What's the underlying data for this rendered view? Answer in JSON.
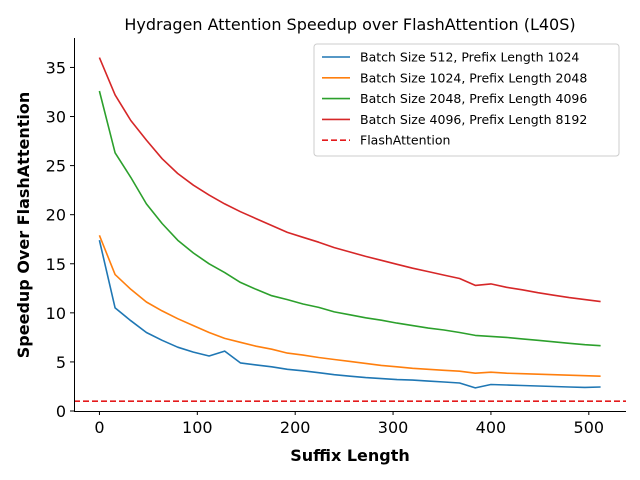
{
  "chart_data": {
    "type": "line",
    "title": "Hydragen Attention Speedup over FlashAttention (L40S)",
    "xlabel": "Suffix Length",
    "ylabel": "Speedup Over FlashAttention",
    "xlim": [
      -26,
      538
    ],
    "ylim": [
      0,
      38
    ],
    "xticks": [
      0,
      100,
      200,
      300,
      400,
      500
    ],
    "yticks": [
      0,
      5,
      10,
      15,
      20,
      25,
      30,
      35
    ],
    "legend_position": "top-right",
    "series": [
      {
        "name": "Batch Size 512, Prefix Length 1024",
        "color": "#1f77b4",
        "style": "solid",
        "x": [
          0,
          16,
          32,
          48,
          64,
          80,
          96,
          112,
          128,
          144,
          160,
          176,
          192,
          208,
          224,
          240,
          256,
          272,
          288,
          304,
          320,
          336,
          352,
          368,
          384,
          400,
          416,
          432,
          448,
          464,
          480,
          496,
          512
        ],
        "y": [
          17.4,
          10.5,
          9.2,
          8.0,
          7.2,
          6.5,
          6.0,
          5.6,
          6.1,
          4.9,
          4.7,
          4.5,
          4.25,
          4.1,
          3.9,
          3.7,
          3.55,
          3.4,
          3.3,
          3.2,
          3.15,
          3.05,
          2.95,
          2.85,
          2.35,
          2.7,
          2.65,
          2.6,
          2.55,
          2.5,
          2.45,
          2.4,
          2.45
        ]
      },
      {
        "name": "Batch Size 1024, Prefix Length 2048",
        "color": "#ff7f0e",
        "style": "solid",
        "x": [
          0,
          16,
          32,
          48,
          64,
          80,
          96,
          112,
          128,
          144,
          160,
          176,
          192,
          208,
          224,
          240,
          256,
          272,
          288,
          304,
          320,
          336,
          352,
          368,
          384,
          400,
          416,
          432,
          448,
          464,
          480,
          496,
          512
        ],
        "y": [
          17.9,
          13.9,
          12.4,
          11.1,
          10.2,
          9.4,
          8.7,
          8.0,
          7.4,
          7.0,
          6.6,
          6.3,
          5.9,
          5.7,
          5.45,
          5.25,
          5.05,
          4.85,
          4.65,
          4.5,
          4.35,
          4.25,
          4.15,
          4.05,
          3.85,
          3.95,
          3.85,
          3.8,
          3.75,
          3.7,
          3.65,
          3.6,
          3.55
        ]
      },
      {
        "name": "Batch Size 2048, Prefix Length 4096",
        "color": "#2ca02c",
        "style": "solid",
        "x": [
          0,
          16,
          32,
          48,
          64,
          80,
          96,
          112,
          128,
          144,
          160,
          176,
          192,
          208,
          224,
          240,
          256,
          272,
          288,
          304,
          320,
          336,
          352,
          368,
          384,
          400,
          416,
          432,
          448,
          464,
          480,
          496,
          512
        ],
        "y": [
          32.6,
          26.3,
          23.8,
          21.1,
          19.1,
          17.4,
          16.1,
          15.0,
          14.1,
          13.1,
          12.4,
          11.75,
          11.35,
          10.9,
          10.55,
          10.1,
          9.8,
          9.5,
          9.25,
          8.95,
          8.7,
          8.45,
          8.25,
          8.0,
          7.7,
          7.6,
          7.5,
          7.35,
          7.2,
          7.05,
          6.9,
          6.75,
          6.65
        ]
      },
      {
        "name": "Batch Size 4096, Prefix Length 8192",
        "color": "#d62728",
        "style": "solid",
        "x": [
          0,
          16,
          32,
          48,
          64,
          80,
          96,
          112,
          128,
          144,
          160,
          176,
          192,
          208,
          224,
          240,
          256,
          272,
          288,
          304,
          320,
          336,
          352,
          368,
          384,
          400,
          416,
          432,
          448,
          464,
          480,
          496,
          512
        ],
        "y": [
          36.0,
          32.2,
          29.6,
          27.6,
          25.7,
          24.2,
          23.0,
          22.0,
          21.1,
          20.3,
          19.6,
          18.9,
          18.2,
          17.7,
          17.2,
          16.65,
          16.2,
          15.75,
          15.35,
          14.95,
          14.55,
          14.2,
          13.85,
          13.5,
          12.8,
          12.95,
          12.6,
          12.35,
          12.05,
          11.8,
          11.55,
          11.35,
          11.15
        ]
      },
      {
        "name": "FlashAttention",
        "color": "#e41a1c",
        "style": "dashed",
        "baseline": 1.0
      }
    ]
  }
}
